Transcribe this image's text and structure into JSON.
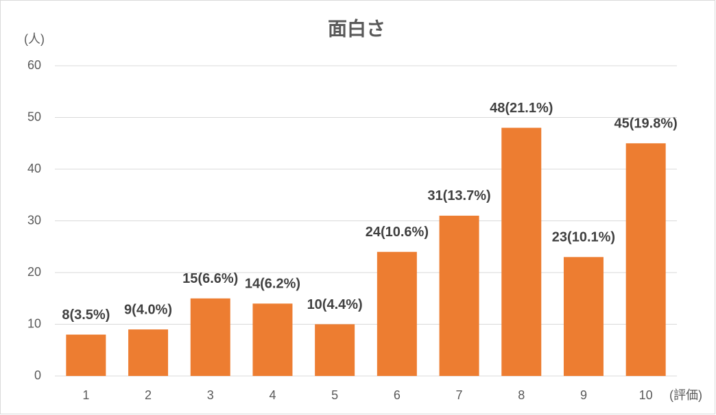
{
  "chart_data": {
    "type": "bar",
    "title": "面白さ",
    "y_axis_label": "(人)",
    "x_axis_label": "(評価)",
    "categories": [
      "1",
      "2",
      "3",
      "4",
      "5",
      "6",
      "7",
      "8",
      "9",
      "10"
    ],
    "values": [
      8,
      9,
      15,
      14,
      10,
      24,
      31,
      48,
      23,
      45
    ],
    "value_labels": [
      "8(3.5%)",
      "9(4.0%)",
      "15(6.6%)",
      "14(6.2%)",
      "10(4.4%)",
      "24(10.6%)",
      "31(13.7%)",
      "48(21.1%)",
      "23(10.1%)",
      "45(19.8%)"
    ],
    "color": "#ed7d31",
    "ylim": [
      0,
      60
    ],
    "yticks": [
      0,
      10,
      20,
      30,
      40,
      50,
      60
    ],
    "grid": true
  }
}
